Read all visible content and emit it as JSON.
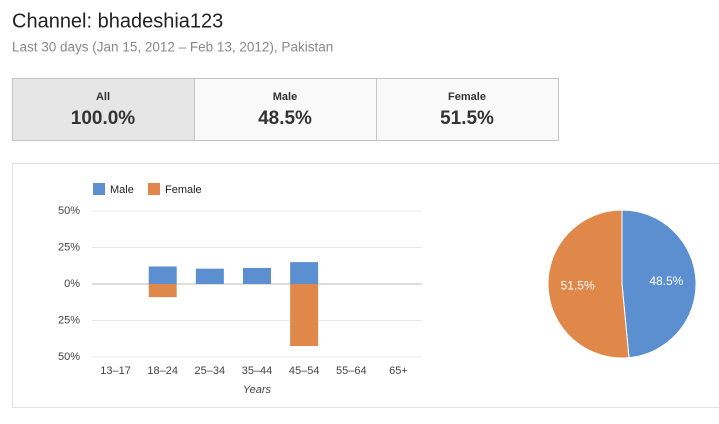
{
  "header": {
    "title": "Channel: bhadeshia123",
    "subtitle": "Last 30 days (Jan 15, 2012 – Feb 13, 2012), Pakistan"
  },
  "tabs": [
    {
      "label": "All",
      "value": "100.0%"
    },
    {
      "label": "Male",
      "value": "48.5%"
    },
    {
      "label": "Female",
      "value": "51.5%"
    }
  ],
  "chart_data": [
    {
      "type": "bar",
      "x_label": "Years",
      "categories": [
        "13–17",
        "18–24",
        "25–34",
        "35–44",
        "45–54",
        "55–64",
        "65+"
      ],
      "series": [
        {
          "name": "Male",
          "color": "#5b8fd0",
          "values": [
            null,
            12,
            10.5,
            11,
            15,
            null,
            null
          ]
        },
        {
          "name": "Female",
          "color": "#e0884a",
          "values": [
            null,
            -9,
            null,
            null,
            -42.5,
            null,
            null
          ]
        }
      ],
      "ylim": [
        -50,
        50
      ],
      "yticks": [
        {
          "value": 50,
          "label": "50%"
        },
        {
          "value": 25,
          "label": "25%"
        },
        {
          "value": 0,
          "label": "0%"
        },
        {
          "value": -25,
          "label": "25%"
        },
        {
          "value": -50,
          "label": "50%"
        }
      ],
      "grid": true
    },
    {
      "type": "pie",
      "categories": [
        "Male",
        "Female"
      ],
      "colors": [
        "#5b8fd0",
        "#e0884a"
      ],
      "values": [
        48.5,
        51.5
      ],
      "value_labels": [
        "48.5%",
        "51.5%"
      ]
    }
  ]
}
